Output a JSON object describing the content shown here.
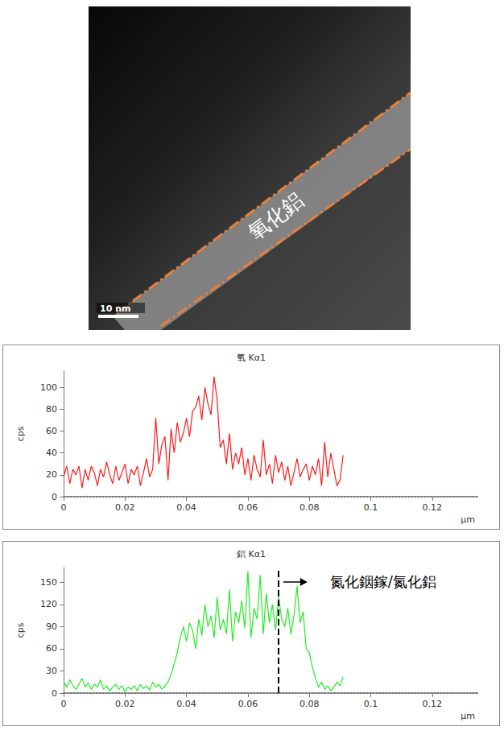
{
  "image": {
    "label": "氧化鋁",
    "scale_bar": "10 nm"
  },
  "chart_data": [
    {
      "type": "line",
      "title": "氧 Kα1",
      "xlabel": "μm",
      "ylabel": "cps",
      "color": "#ff1a1a",
      "grid": false,
      "xlim": [
        0,
        0.135
      ],
      "xticks": [
        0,
        0.02,
        0.04,
        0.06,
        0.08,
        0.1,
        0.12
      ],
      "ylim": [
        0,
        115
      ],
      "yticks": [
        0,
        20,
        40,
        60,
        80,
        100
      ],
      "x": [
        0,
        0.001,
        0.002,
        0.003,
        0.004,
        0.005,
        0.006,
        0.007,
        0.008,
        0.009,
        0.01,
        0.011,
        0.012,
        0.013,
        0.014,
        0.015,
        0.016,
        0.017,
        0.018,
        0.019,
        0.02,
        0.021,
        0.022,
        0.023,
        0.024,
        0.025,
        0.026,
        0.027,
        0.028,
        0.029,
        0.03,
        0.031,
        0.032,
        0.033,
        0.034,
        0.035,
        0.036,
        0.037,
        0.038,
        0.039,
        0.04,
        0.041,
        0.042,
        0.043,
        0.044,
        0.045,
        0.046,
        0.047,
        0.048,
        0.049,
        0.05,
        0.051,
        0.052,
        0.053,
        0.054,
        0.055,
        0.056,
        0.057,
        0.058,
        0.059,
        0.06,
        0.061,
        0.062,
        0.063,
        0.064,
        0.065,
        0.066,
        0.067,
        0.068,
        0.069,
        0.07,
        0.071,
        0.072,
        0.073,
        0.074,
        0.075,
        0.076,
        0.077,
        0.078,
        0.079,
        0.08,
        0.081,
        0.082,
        0.083,
        0.084,
        0.085,
        0.086,
        0.087,
        0.088,
        0.089,
        0.09,
        0.091
      ],
      "values": [
        18,
        28,
        12,
        25,
        20,
        28,
        8,
        25,
        15,
        28,
        22,
        10,
        25,
        18,
        32,
        20,
        12,
        28,
        15,
        22,
        30,
        12,
        25,
        20,
        28,
        10,
        22,
        35,
        18,
        25,
        72,
        30,
        48,
        55,
        15,
        62,
        40,
        68,
        50,
        58,
        72,
        55,
        78,
        82,
        92,
        70,
        100,
        85,
        75,
        110,
        88,
        45,
        52,
        30,
        58,
        25,
        40,
        30,
        45,
        20,
        35,
        15,
        38,
        25,
        18,
        52,
        20,
        30,
        12,
        38,
        22,
        32,
        15,
        28,
        10,
        22,
        35,
        18,
        25,
        30,
        15,
        28,
        20,
        35,
        10,
        50,
        18,
        40,
        25,
        10,
        15,
        38
      ]
    },
    {
      "type": "line",
      "title": "鋁 Kα1",
      "xlabel": "μm",
      "ylabel": "cps",
      "color": "#22ee22",
      "grid": false,
      "xlim": [
        0,
        0.135
      ],
      "xticks": [
        0,
        0.02,
        0.04,
        0.06,
        0.08,
        0.1,
        0.12
      ],
      "ylim": [
        0,
        170
      ],
      "yticks": [
        0,
        30,
        60,
        90,
        120,
        150
      ],
      "x": [
        0,
        0.001,
        0.002,
        0.003,
        0.004,
        0.005,
        0.006,
        0.007,
        0.008,
        0.009,
        0.01,
        0.011,
        0.012,
        0.013,
        0.014,
        0.015,
        0.016,
        0.017,
        0.018,
        0.019,
        0.02,
        0.021,
        0.022,
        0.023,
        0.024,
        0.025,
        0.026,
        0.027,
        0.028,
        0.029,
        0.03,
        0.031,
        0.032,
        0.033,
        0.034,
        0.035,
        0.036,
        0.037,
        0.038,
        0.039,
        0.04,
        0.041,
        0.042,
        0.043,
        0.044,
        0.045,
        0.046,
        0.047,
        0.048,
        0.049,
        0.05,
        0.051,
        0.052,
        0.053,
        0.054,
        0.055,
        0.056,
        0.057,
        0.058,
        0.059,
        0.06,
        0.061,
        0.062,
        0.063,
        0.064,
        0.065,
        0.066,
        0.067,
        0.068,
        0.069,
        0.07,
        0.071,
        0.072,
        0.073,
        0.074,
        0.075,
        0.076,
        0.077,
        0.078,
        0.079,
        0.08,
        0.081,
        0.082,
        0.083,
        0.084,
        0.085,
        0.086,
        0.087,
        0.088,
        0.089,
        0.09,
        0.091
      ],
      "values": [
        15,
        8,
        18,
        10,
        5,
        12,
        20,
        8,
        14,
        5,
        12,
        8,
        18,
        5,
        10,
        3,
        8,
        12,
        5,
        10,
        2,
        8,
        5,
        10,
        3,
        12,
        6,
        10,
        4,
        15,
        8,
        12,
        5,
        10,
        15,
        25,
        40,
        55,
        75,
        90,
        70,
        95,
        85,
        60,
        100,
        78,
        120,
        90,
        105,
        75,
        130,
        85,
        100,
        80,
        140,
        70,
        110,
        95,
        125,
        88,
        165,
        75,
        115,
        100,
        160,
        80,
        135,
        95,
        120,
        85,
        130,
        100,
        90,
        115,
        80,
        105,
        145,
        95,
        110,
        60,
        55,
        35,
        20,
        8,
        15,
        5,
        10,
        3,
        8,
        15,
        10,
        22
      ],
      "annotation": {
        "text": "氮化銦鎵/氮化鋁",
        "x": 0.071
      }
    }
  ]
}
